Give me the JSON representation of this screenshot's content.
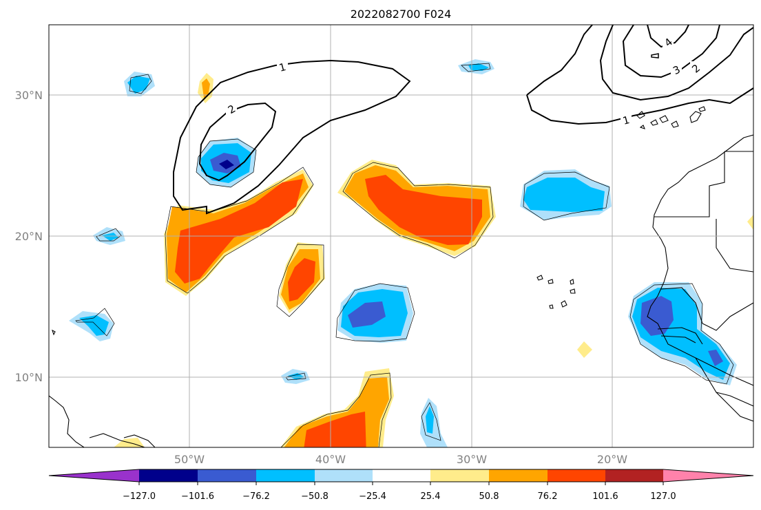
{
  "title": "2022082700 F024",
  "map": {
    "lon_range": [
      -60,
      -10
    ],
    "lat_range": [
      5,
      35
    ],
    "grid": true,
    "lat_labels": [
      {
        "lat": 30,
        "text": "30°N"
      },
      {
        "lat": 20,
        "text": "20°N"
      },
      {
        "lat": 10,
        "text": "10°N"
      }
    ],
    "lon_labels": [
      {
        "lon": -50,
        "text": "50°W"
      },
      {
        "lon": -40,
        "text": "40°W"
      },
      {
        "lon": -30,
        "text": "30°W"
      },
      {
        "lon": -20,
        "text": "20°W"
      }
    ],
    "contour_labels": [
      "1",
      "2",
      "1",
      "2",
      "3",
      "4"
    ]
  },
  "colorbar": {
    "colors": [
      "#9932cc",
      "#00008b",
      "#3a5bd1",
      "#00bfff",
      "#afe0fa",
      "#ffffff",
      "#ffec8b",
      "#ffa500",
      "#ff4500",
      "#b22222",
      "#ff82ab"
    ],
    "labels": [
      "−127.0",
      "−101.6",
      "−76.2",
      "−50.8",
      "−25.4",
      "25.4",
      "50.8",
      "76.2",
      "101.6",
      "127.0"
    ]
  }
}
